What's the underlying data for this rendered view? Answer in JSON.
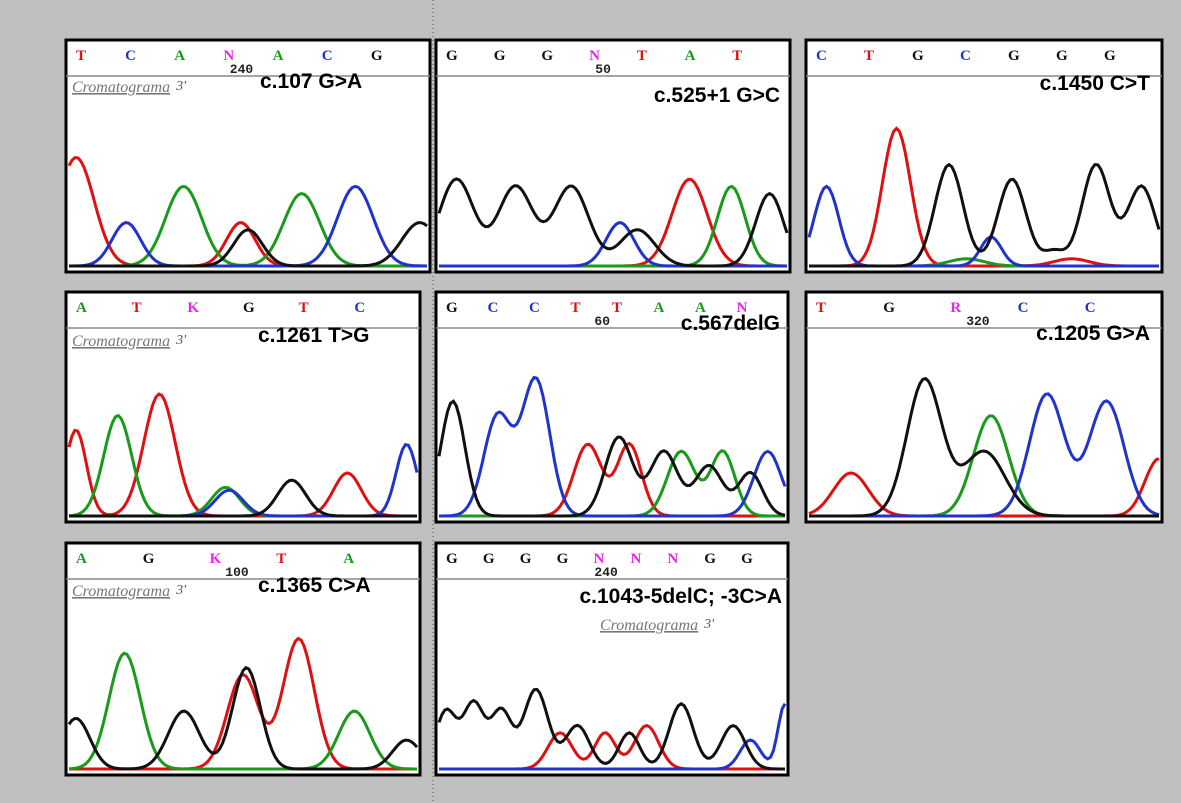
{
  "panels": [
    {
      "bases": [
        "T",
        "C",
        "A",
        "N",
        "A",
        "C",
        "G"
      ],
      "position": "240",
      "caption": "Cromatograma",
      "strand": "3'",
      "label": "c.107 G>A"
    },
    {
      "bases": [
        "G",
        "G",
        "G",
        "N",
        "T",
        "A",
        "T"
      ],
      "position": "50",
      "label": "c.525+1 G>C"
    },
    {
      "bases": [
        "C",
        "T",
        "G",
        "C",
        "G",
        "G",
        "G"
      ],
      "label": "c.1450 C>T"
    },
    {
      "bases": [
        "A",
        "T",
        "K",
        "G",
        "T",
        "C"
      ],
      "caption": "Cromatograma",
      "strand": "3'",
      "label": "c.1261 T>G"
    },
    {
      "bases": [
        "G",
        "C",
        "C",
        "T",
        "T",
        "A",
        "A",
        "N"
      ],
      "position": "60",
      "label": "c.567delG"
    },
    {
      "bases": [
        "T",
        "G",
        "R",
        "C",
        "C"
      ],
      "position": "320",
      "label": "c.1205 G>A"
    },
    {
      "bases": [
        "A",
        "G",
        "K",
        "T",
        "A"
      ],
      "position": "100",
      "caption": "Cromatograma",
      "strand": "3'",
      "label": "c.1365 C>A"
    },
    {
      "bases": [
        "G",
        "G",
        "G",
        "G",
        "N",
        "N",
        "N",
        "G",
        "G"
      ],
      "position": "240",
      "caption": "Cromatograma",
      "strand": "3'",
      "label": "c.1043-5delC; -3C>A"
    }
  ]
}
